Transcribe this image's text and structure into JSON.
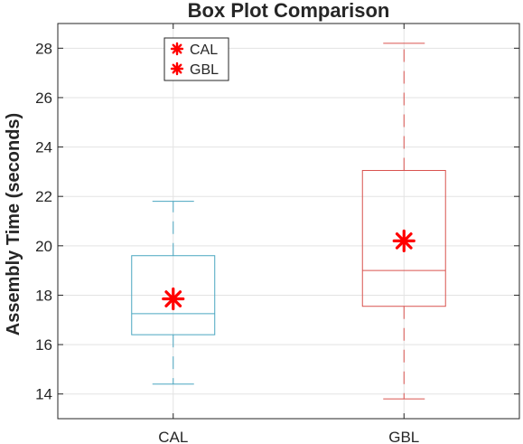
{
  "chart_data": {
    "type": "box",
    "title": "Box Plot Comparison",
    "xlabel": "",
    "ylabel": "Assembly Time (seconds)",
    "categories": [
      "CAL",
      "GBL"
    ],
    "ylim": [
      13,
      29
    ],
    "yticks": [
      14,
      16,
      18,
      20,
      22,
      24,
      26,
      28
    ],
    "grid": true,
    "legend": {
      "placement": "top-left",
      "entries": [
        "CAL",
        "GBL"
      ]
    },
    "series": [
      {
        "category": "CAL",
        "whisker_low": 14.4,
        "q1": 16.4,
        "median": 17.25,
        "q3": 19.6,
        "whisker_high": 21.8,
        "mean": 17.85,
        "color": "#4aa6c0"
      },
      {
        "category": "GBL",
        "whisker_low": 13.8,
        "q1": 17.55,
        "median": 19.0,
        "q3": 23.05,
        "whisker_high": 28.2,
        "mean": 20.2,
        "color": "#d9534f"
      }
    ],
    "marker_color": "#ff0000"
  }
}
